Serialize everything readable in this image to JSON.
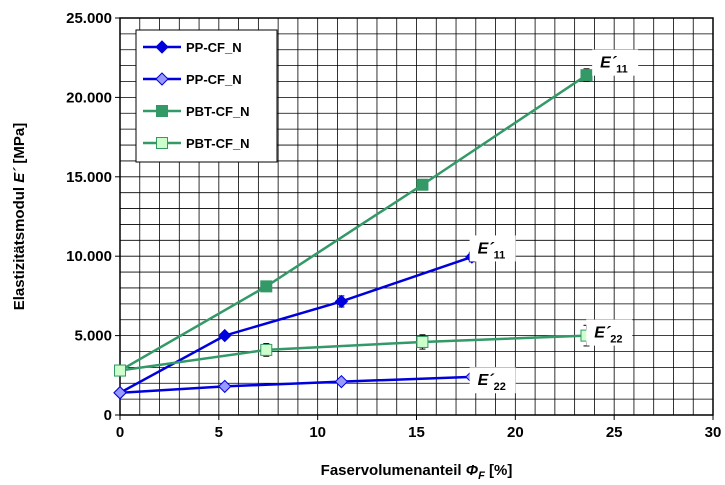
{
  "chart_data": {
    "type": "line",
    "xlabel_main": "Faservolumenanteil ",
    "xlabel_symbol": "Φ",
    "xlabel_sub": "F",
    "xlabel_unit": " [%]",
    "ylabel_main": "Elastizitätsmodul ",
    "ylabel_symbol": "E´",
    "ylabel_unit": " [MPa]",
    "xlim": [
      0,
      30
    ],
    "ylim": [
      0,
      25000
    ],
    "x_ticks": [
      0,
      5,
      10,
      15,
      20,
      25,
      30
    ],
    "x_tick_labels": [
      "0",
      "5",
      "10",
      "15",
      "20",
      "25",
      "30"
    ],
    "y_ticks": [
      0,
      5000,
      10000,
      15000,
      20000,
      25000
    ],
    "y_tick_labels": [
      "0",
      "5.000",
      "10.000",
      "15.000",
      "20.000",
      "25.000"
    ],
    "grid": true,
    "minor_grid_x_step": 1,
    "minor_grid_y_step": 1000,
    "legend_position": "top-left",
    "series": [
      {
        "name": "PP-CF_N",
        "color": "#0000dd",
        "marker": "diamond-filled",
        "x": [
          0,
          5.3,
          11.2,
          17.8
        ],
        "y": [
          1400,
          5000,
          7150,
          9950
        ],
        "err": [
          0,
          0,
          350,
          300
        ]
      },
      {
        "name": "PP-CF_N",
        "color": "#0000dd",
        "marker": "diamond-open",
        "fill": "#9999ff",
        "x": [
          0,
          5.3,
          11.2,
          17.8
        ],
        "y": [
          1400,
          1800,
          2100,
          2400
        ],
        "err": [
          0,
          0,
          0,
          0
        ]
      },
      {
        "name": "PBT-CF_N",
        "color": "#339966",
        "marker": "square-filled",
        "x": [
          0,
          7.4,
          15.3,
          23.6
        ],
        "y": [
          2800,
          8100,
          14500,
          21400
        ],
        "err": [
          0,
          0,
          300,
          400
        ]
      },
      {
        "name": "PBT-CF_N",
        "color": "#339966",
        "marker": "square-open",
        "fill": "#ccffcc",
        "x": [
          0,
          7.4,
          15.3,
          23.6
        ],
        "y": [
          2800,
          4100,
          4600,
          5000
        ],
        "err": [
          0,
          400,
          450,
          650
        ]
      }
    ],
    "annotations": [
      {
        "main": "E´",
        "sub": "11",
        "x": 25.0,
        "y": 22000
      },
      {
        "main": "E´",
        "sub": "11",
        "x": 18.8,
        "y": 10300
      },
      {
        "main": "E´",
        "sub": "22",
        "x": 24.7,
        "y": 5000
      },
      {
        "main": "E´",
        "sub": "22",
        "x": 18.8,
        "y": 2000
      }
    ]
  }
}
